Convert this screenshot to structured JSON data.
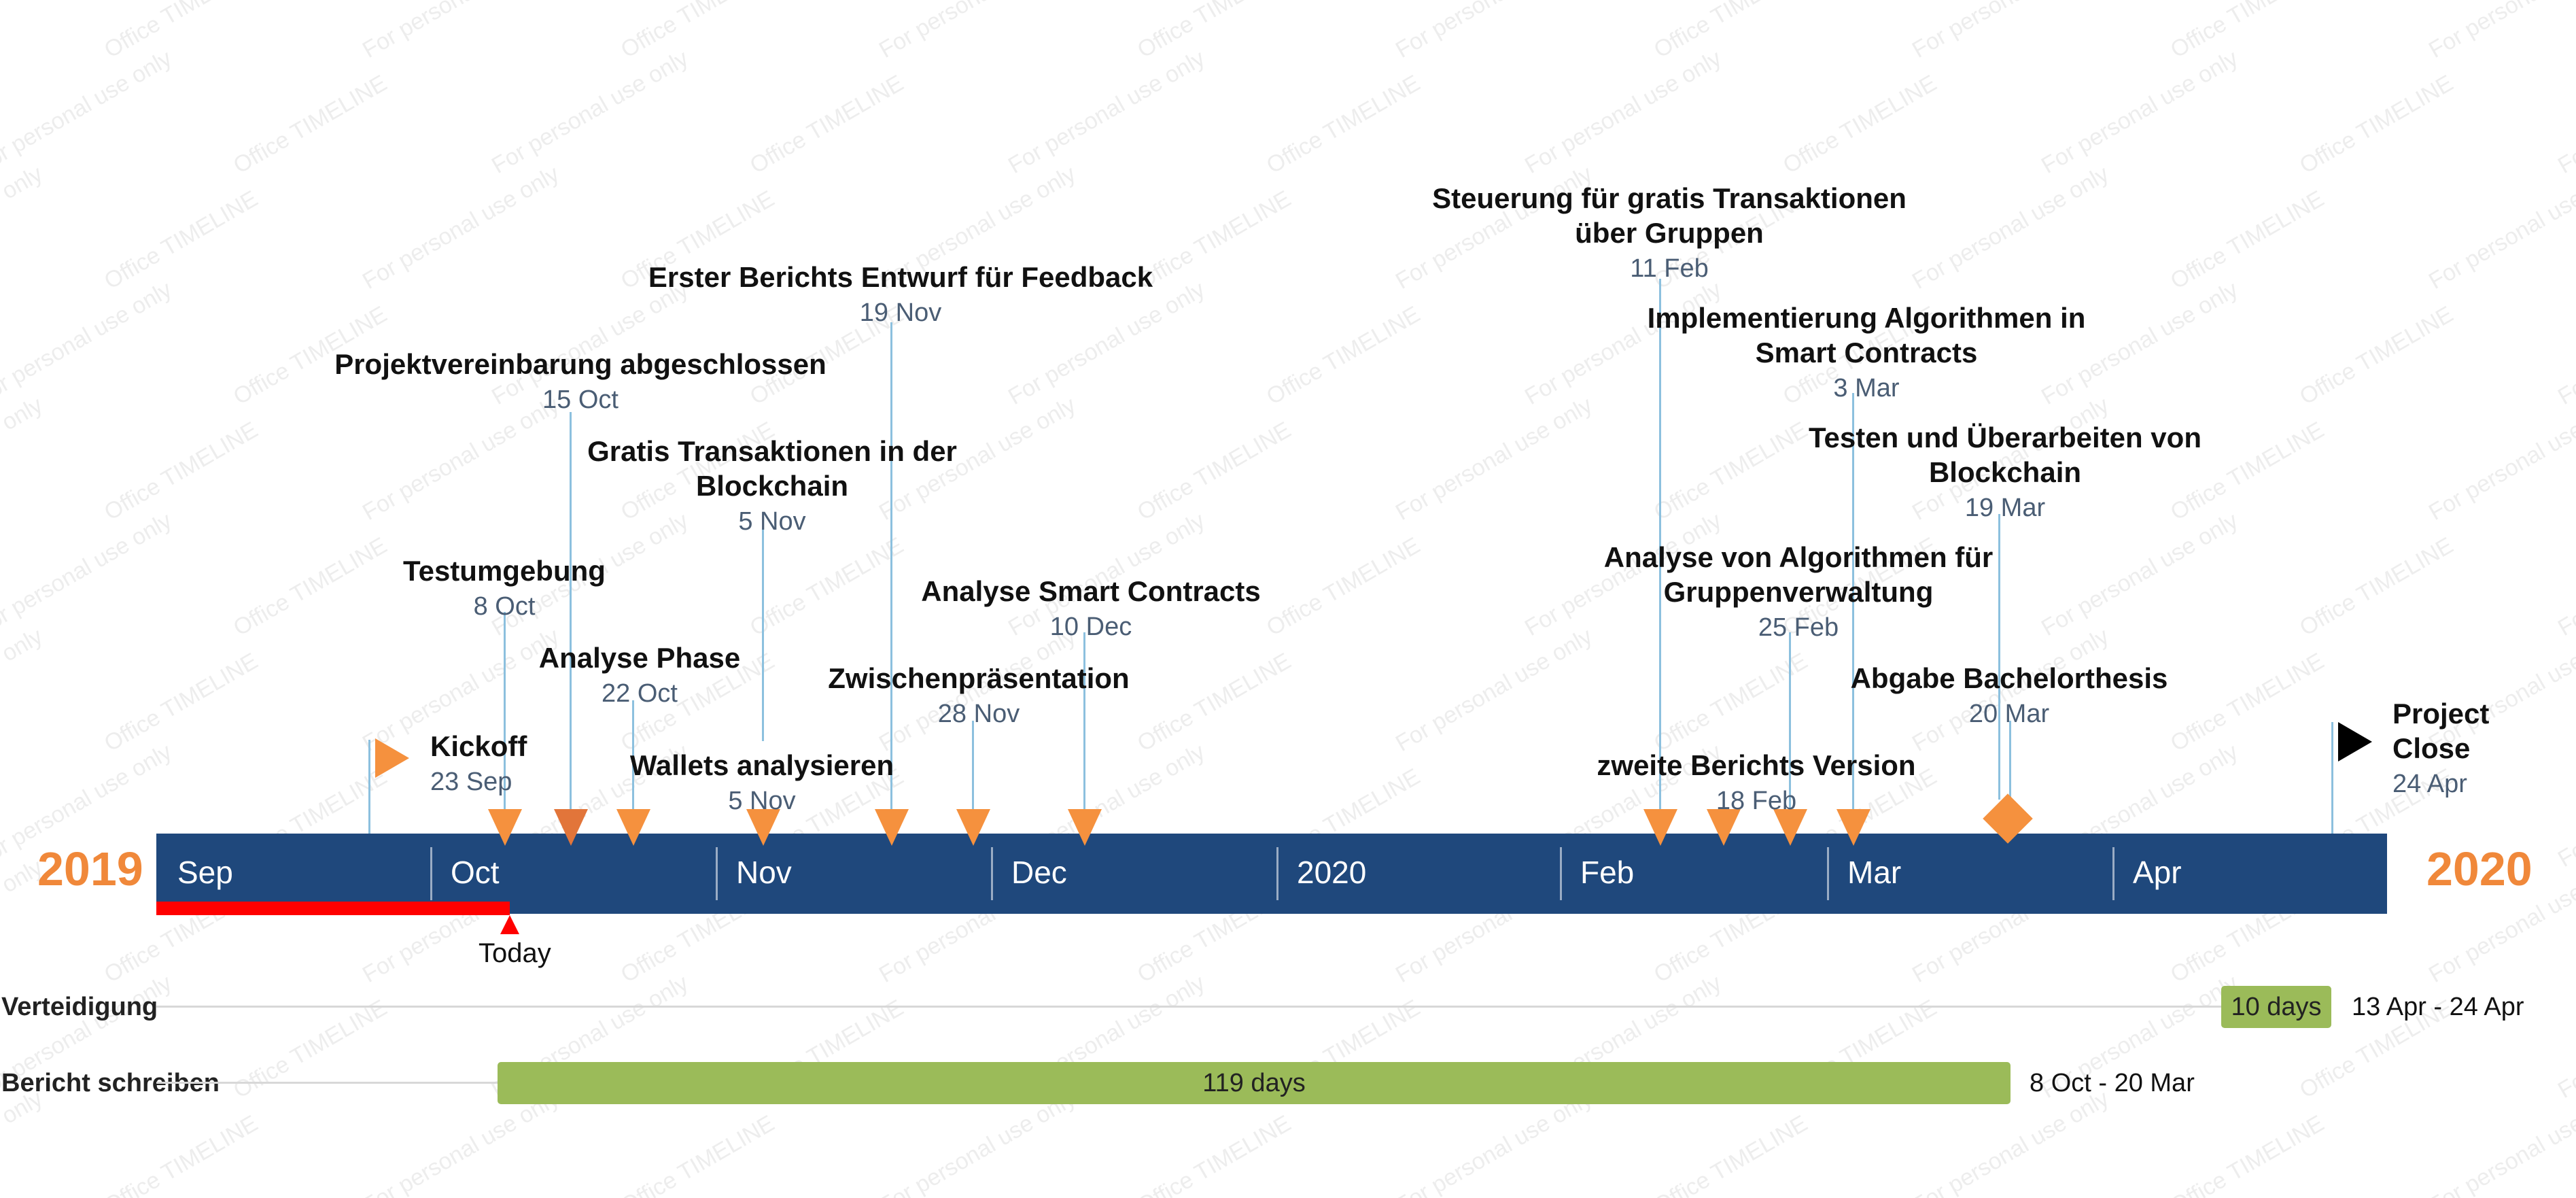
{
  "timeline": {
    "year_start": "2019",
    "year_end": "2020",
    "months": [
      "Sep",
      "Oct",
      "Nov",
      "Dec",
      "2020",
      "Feb",
      "Mar",
      "Apr"
    ],
    "today_label": "Today",
    "watermark_lines": [
      "For personal use only",
      "Office TIMELINE"
    ],
    "colors": {
      "bar": "#1F487C",
      "year": "#F0883A",
      "marker": "#F5913E",
      "connector": "#8CC0DE",
      "today": "#FF0000",
      "task": "#9BBB59"
    }
  },
  "milestones": [
    {
      "title": "Kickoff",
      "date": "23 Sep"
    },
    {
      "title": "Testumgebung",
      "date": "8 Oct"
    },
    {
      "title": "Projektvereinbarung abgeschlossen",
      "date": "15 Oct"
    },
    {
      "title": "Analyse Phase",
      "date": "22 Oct"
    },
    {
      "title": "Gratis Transaktionen in der\nBlockchain",
      "date": "5 Nov"
    },
    {
      "title": "Wallets analysieren",
      "date": "5 Nov"
    },
    {
      "title": "Erster Berichts Entwurf für Feedback",
      "date": "19 Nov"
    },
    {
      "title": "Zwischenpräsentation",
      "date": "28 Nov"
    },
    {
      "title": "Analyse Smart Contracts",
      "date": "10 Dec"
    },
    {
      "title": "Steuerung für gratis Transaktionen\nüber Gruppen",
      "date": "11 Feb"
    },
    {
      "title": "zweite Berichts Version",
      "date": "18 Feb"
    },
    {
      "title": "Analyse von Algorithmen für\nGruppenverwaltung",
      "date": "25 Feb"
    },
    {
      "title": "Implementierung Algorithmen in\nSmart Contracts",
      "date": "3 Mar"
    },
    {
      "title": "Testen und Überarbeiten von\nBlockchain",
      "date": "19 Mar"
    },
    {
      "title": "Abgabe Bachelorthesis",
      "date": "20 Mar"
    },
    {
      "title": "Project\nClose",
      "date": "24 Apr"
    }
  ],
  "tasks": [
    {
      "name": "Verteidigung",
      "duration": "10 days",
      "range": "13 Apr - 24 Apr"
    },
    {
      "name": "Bericht schreiben",
      "duration": "119 days",
      "range": "8 Oct - 20 Mar"
    }
  ]
}
